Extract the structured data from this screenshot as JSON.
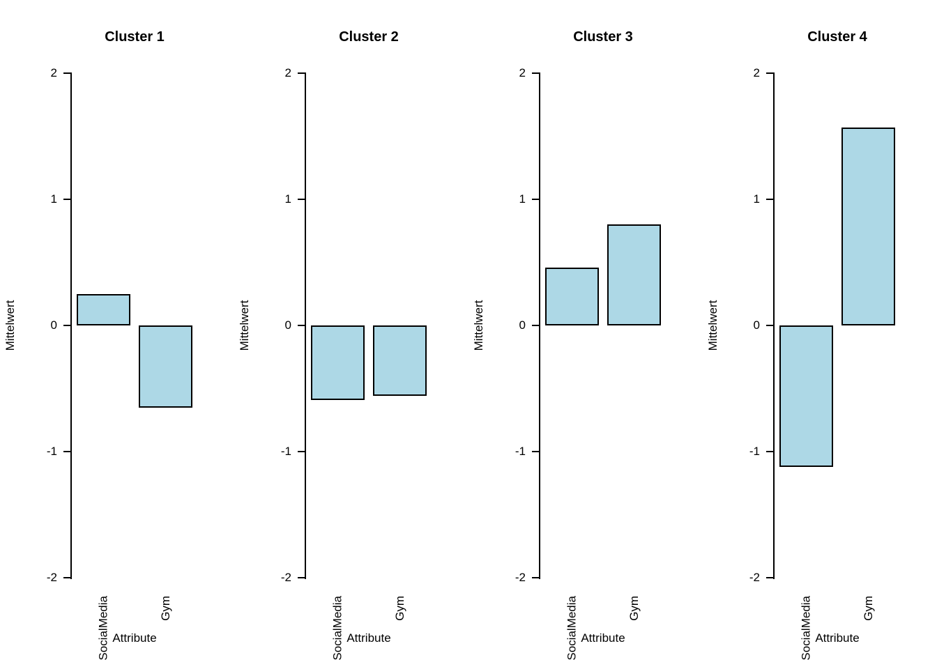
{
  "chart_data": {
    "type": "bar",
    "panels": [
      {
        "title": "Cluster 1",
        "values": [
          0.25,
          -0.65
        ]
      },
      {
        "title": "Cluster 2",
        "values": [
          -0.59,
          -0.56
        ]
      },
      {
        "title": "Cluster 3",
        "values": [
          0.46,
          0.8
        ]
      },
      {
        "title": "Cluster 4",
        "values": [
          -1.12,
          1.57
        ]
      }
    ],
    "categories": [
      "SocialMedia",
      "Gym"
    ],
    "xlabel": "Attribute",
    "ylabel": "Mittelwert",
    "ylim": [
      -2,
      2
    ],
    "yticks": [
      2,
      1,
      0,
      -1,
      -2
    ],
    "bar_fill": "#ADD8E6",
    "bar_border": "#000000",
    "grid": false,
    "legend": false
  }
}
